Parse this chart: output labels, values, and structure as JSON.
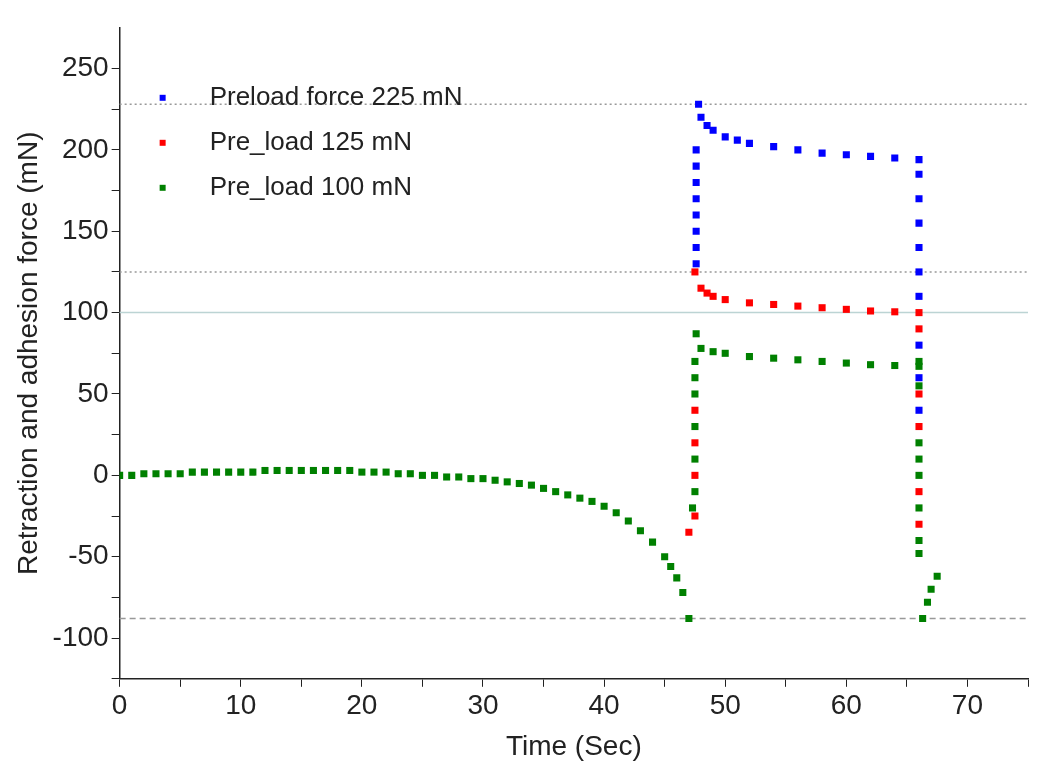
{
  "chart_data": {
    "type": "scatter",
    "xlabel": "Time (Sec)",
    "ylabel": "Retraction and adhesion force (mN)",
    "xlim": [
      0,
      75
    ],
    "xticks": [
      0,
      {
        "value": 5,
        "label": null
      },
      10,
      {
        "value": 15,
        "label": null
      },
      20,
      {
        "value": 25,
        "label": null
      },
      30,
      {
        "value": 35,
        "label": null
      },
      40,
      {
        "value": 45,
        "label": null
      },
      50,
      {
        "value": 55,
        "label": null
      },
      60,
      {
        "value": 65,
        "label": null
      },
      70,
      {
        "value": 75,
        "label": null
      }
    ],
    "ylim": [
      -125,
      275
    ],
    "yticks": [
      {
        "value": -125,
        "label": null
      },
      -100,
      {
        "value": -75,
        "label": null
      },
      -50,
      {
        "value": -25,
        "label": null
      },
      0,
      {
        "value": 25,
        "label": null
      },
      50,
      {
        "value": 75,
        "label": null
      },
      100,
      {
        "value": 125,
        "label": null
      },
      150,
      {
        "value": 175,
        "label": null
      },
      200,
      {
        "value": 225,
        "label": null
      },
      250
    ],
    "grid": false,
    "legend": "top left",
    "marker": "square",
    "ref_lines": [
      {
        "axis": "y",
        "value": 228,
        "color": "#999999",
        "line_style": "dotted"
      },
      {
        "axis": "y",
        "value": 125,
        "color": "#999999",
        "line_style": "dotted"
      },
      {
        "axis": "y",
        "value": 100,
        "color": "#bcd4d4",
        "line_style": "solid"
      },
      {
        "axis": "y",
        "value": -88,
        "color": "#999999",
        "line_style": "dashed"
      }
    ],
    "series": [
      {
        "name": "Preload force 225 mN",
        "color": "#0000ff",
        "x": [
          47.6,
          47.6,
          47.6,
          47.6,
          47.6,
          47.6,
          47.6,
          47.6,
          47.8,
          48,
          48.5,
          49,
          50,
          51,
          52,
          54,
          56,
          58,
          60,
          62,
          64,
          66,
          66,
          66,
          66,
          66,
          66,
          66,
          66,
          66,
          66
        ],
        "values": [
          130,
          140,
          150,
          160,
          170,
          180,
          190,
          200,
          228,
          220,
          215,
          212,
          208,
          206,
          204,
          202,
          200,
          198,
          197,
          196,
          195,
          194,
          185,
          170,
          155,
          140,
          125,
          110,
          80,
          60,
          40
        ]
      },
      {
        "name": "Pre_load 125 mN",
        "color": "#ff0000",
        "x": [
          47.0,
          47.5,
          47.5,
          47.5,
          47.5,
          47.5,
          48,
          48.5,
          49,
          50,
          52,
          54,
          56,
          58,
          60,
          62,
          64,
          66,
          66,
          66,
          66,
          66,
          66
        ],
        "values": [
          -35,
          -25,
          0,
          20,
          40,
          125,
          115,
          112,
          110,
          108,
          106,
          105,
          104,
          103,
          102,
          101,
          100.5,
          100,
          90,
          50,
          30,
          -10,
          -30
        ]
      },
      {
        "name": "Pre_load 100 mN",
        "color": "#008000",
        "x": [
          0,
          1,
          2,
          3,
          4,
          5,
          6,
          7,
          8,
          9,
          10,
          11,
          12,
          13,
          14,
          15,
          16,
          17,
          18,
          19,
          20,
          21,
          22,
          23,
          24,
          25,
          26,
          27,
          28,
          29,
          30,
          31,
          32,
          33,
          34,
          35,
          36,
          37,
          38,
          39,
          40,
          41,
          42,
          43,
          44,
          45,
          45.5,
          46,
          46.5,
          47,
          47.3,
          47.5,
          47.5,
          47.5,
          47.5,
          47.5,
          47.5,
          47.6,
          48,
          49,
          50,
          52,
          54,
          56,
          58,
          60,
          62,
          64,
          66,
          66,
          66,
          66,
          66,
          66,
          66,
          66,
          66,
          66.3,
          66.7,
          67,
          67.5
        ],
        "values": [
          0,
          0,
          1,
          1,
          1,
          1,
          2,
          2,
          2,
          2,
          2,
          2,
          3,
          3,
          3,
          3,
          3,
          3,
          3,
          3,
          2,
          2,
          2,
          1,
          1,
          0,
          0,
          -1,
          -1,
          -2,
          -2,
          -3,
          -4,
          -5,
          -6,
          -8,
          -10,
          -12,
          -14,
          -16,
          -19,
          -23,
          -28,
          -34,
          -41,
          -50,
          -56,
          -63,
          -72,
          -88,
          -20,
          -10,
          10,
          30,
          50,
          60,
          70,
          87,
          78,
          76,
          75,
          73,
          72,
          71,
          70,
          69,
          68,
          67.5,
          67,
          70,
          55,
          20,
          10,
          0,
          -20,
          -40,
          -48,
          -88,
          -78,
          -70,
          -62
        ]
      }
    ]
  }
}
